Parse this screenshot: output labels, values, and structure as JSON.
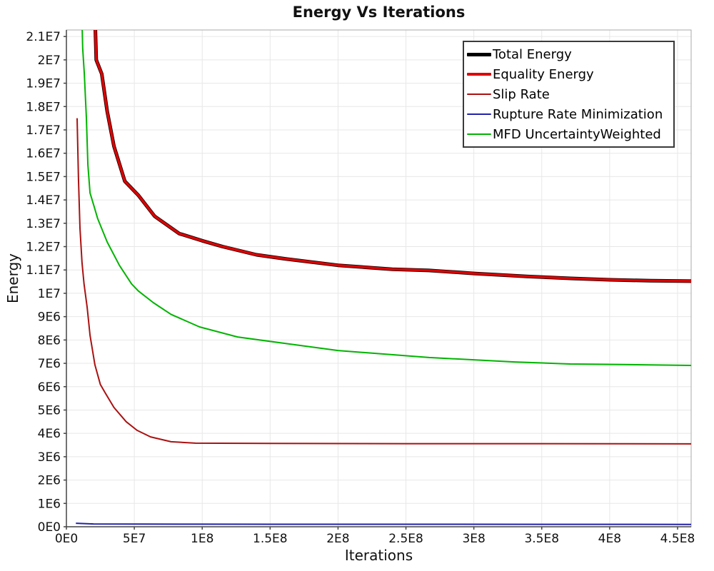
{
  "chart_data": {
    "type": "line",
    "title": "Energy Vs Iterations",
    "xlabel": "Iterations",
    "ylabel": "Energy",
    "xlim": [
      0,
      460000000.0
    ],
    "ylim": [
      0,
      21280000.0
    ],
    "grid": true,
    "legend_position": "top-right",
    "axis_color": "#444444",
    "border_color": "#aaaaaa",
    "grid_color": "#e7e7e7",
    "x_ticks": [
      {
        "v": 0,
        "label": "0E0"
      },
      {
        "v": 50000000.0,
        "label": "5E7"
      },
      {
        "v": 100000000.0,
        "label": "1E8"
      },
      {
        "v": 150000000.0,
        "label": "1.5E8"
      },
      {
        "v": 200000000.0,
        "label": "2E8"
      },
      {
        "v": 250000000.0,
        "label": "2.5E8"
      },
      {
        "v": 300000000.0,
        "label": "3E8"
      },
      {
        "v": 350000000.0,
        "label": "3.5E8"
      },
      {
        "v": 400000000.0,
        "label": "4E8"
      },
      {
        "v": 450000000.0,
        "label": "4.5E8"
      }
    ],
    "y_ticks": [
      {
        "v": 0,
        "label": "0E0"
      },
      {
        "v": 1000000.0,
        "label": "1E6"
      },
      {
        "v": 2000000.0,
        "label": "2E6"
      },
      {
        "v": 3000000.0,
        "label": "3E6"
      },
      {
        "v": 4000000.0,
        "label": "4E6"
      },
      {
        "v": 5000000.0,
        "label": "5E6"
      },
      {
        "v": 6000000.0,
        "label": "6E6"
      },
      {
        "v": 7000000.0,
        "label": "7E6"
      },
      {
        "v": 8000000.0,
        "label": "8E6"
      },
      {
        "v": 9000000.0,
        "label": "9E6"
      },
      {
        "v": 10000000.0,
        "label": "1E7"
      },
      {
        "v": 11000000.0,
        "label": "1.1E7"
      },
      {
        "v": 12000000.0,
        "label": "1.2E7"
      },
      {
        "v": 13000000.0,
        "label": "1.3E7"
      },
      {
        "v": 14000000.0,
        "label": "1.4E7"
      },
      {
        "v": 15000000.0,
        "label": "1.5E7"
      },
      {
        "v": 16000000.0,
        "label": "1.6E7"
      },
      {
        "v": 17000000.0,
        "label": "1.7E7"
      },
      {
        "v": 18000000.0,
        "label": "1.8E7"
      },
      {
        "v": 19000000.0,
        "label": "1.9E7"
      },
      {
        "v": 20000000.0,
        "label": "2E7"
      },
      {
        "v": 21000000.0,
        "label": "2.1E7"
      }
    ],
    "series": [
      {
        "name": "Total Energy",
        "color": "#000000",
        "width": 5,
        "points": [
          [
            19000000.0,
            26000000.0
          ],
          [
            22000000.0,
            20000000.0
          ],
          [
            26000000.0,
            19400000.0
          ],
          [
            30000000.0,
            17800000.0
          ],
          [
            35000000.0,
            16300000.0
          ],
          [
            43000000.0,
            14800000.0
          ],
          [
            53000000.0,
            14200000.0
          ],
          [
            65000000.0,
            13300000.0
          ],
          [
            83000000.0,
            12560000.0
          ],
          [
            100000000.0,
            12250000.0
          ],
          [
            115000000.0,
            12000000.0
          ],
          [
            140000000.0,
            11650000.0
          ],
          [
            162000000.0,
            11470000.0
          ],
          [
            200000000.0,
            11200000.0
          ],
          [
            240000000.0,
            11030000.0
          ],
          [
            267000000.0,
            10980000.0
          ],
          [
            300000000.0,
            10850000.0
          ],
          [
            340000000.0,
            10720000.0
          ],
          [
            371000000.0,
            10640000.0
          ],
          [
            400000000.0,
            10580000.0
          ],
          [
            430000000.0,
            10540000.0
          ],
          [
            460000000.0,
            10520000.0
          ]
        ]
      },
      {
        "name": "Equality Energy",
        "color": "#dd0000",
        "width": 3.5,
        "points": [
          [
            19000000.0,
            26000000.0
          ],
          [
            22000000.0,
            20000000.0
          ],
          [
            26000000.0,
            19400000.0
          ],
          [
            30000000.0,
            17800000.0
          ],
          [
            35000000.0,
            16300000.0
          ],
          [
            43000000.0,
            14800000.0
          ],
          [
            53000000.0,
            14200000.0
          ],
          [
            65000000.0,
            13300000.0
          ],
          [
            83000000.0,
            12560000.0
          ],
          [
            100000000.0,
            12250000.0
          ],
          [
            115000000.0,
            12000000.0
          ],
          [
            140000000.0,
            11650000.0
          ],
          [
            162000000.0,
            11470000.0
          ],
          [
            200000000.0,
            11200000.0
          ],
          [
            240000000.0,
            11030000.0
          ],
          [
            267000000.0,
            10980000.0
          ],
          [
            300000000.0,
            10850000.0
          ],
          [
            340000000.0,
            10720000.0
          ],
          [
            371000000.0,
            10640000.0
          ],
          [
            400000000.0,
            10580000.0
          ],
          [
            430000000.0,
            10540000.0
          ],
          [
            460000000.0,
            10520000.0
          ]
        ]
      },
      {
        "name": "Slip Rate",
        "color": "#aa1111",
        "width": 2,
        "points": [
          [
            7900000.0,
            17500000.0
          ],
          [
            8900000.0,
            14900000.0
          ],
          [
            10000000.0,
            12800000.0
          ],
          [
            11500000.0,
            11300000.0
          ],
          [
            13000000.0,
            10400000.0
          ],
          [
            15300000.0,
            9390000.0
          ],
          [
            17400000.0,
            8200000.0
          ],
          [
            21000000.0,
            6940000.0
          ],
          [
            25000000.0,
            6090000.0
          ],
          [
            29000000.0,
            5690000.0
          ],
          [
            35000000.0,
            5110000.0
          ],
          [
            44000000.0,
            4500000.0
          ],
          [
            52000000.0,
            4130000.0
          ],
          [
            62000000.0,
            3850000.0
          ],
          [
            77000000.0,
            3640000.0
          ],
          [
            95000000.0,
            3580000.0
          ],
          [
            150000000.0,
            3570000.0
          ],
          [
            250000000.0,
            3560000.0
          ],
          [
            350000000.0,
            3560000.0
          ],
          [
            460000000.0,
            3550000.0
          ]
        ]
      },
      {
        "name": "Rupture Rate Minimization",
        "color": "#2222aa",
        "width": 2,
        "points": [
          [
            7000000.0,
            150000.0
          ],
          [
            20000000.0,
            120000.0
          ],
          [
            100000000.0,
            110000.0
          ],
          [
            460000000.0,
            100000.0
          ]
        ]
      },
      {
        "name": "MFD UncertaintyWeighted",
        "color": "#00b400",
        "width": 2,
        "points": [
          [
            10500000.0,
            24000000.0
          ],
          [
            12000000.0,
            20500000.0
          ],
          [
            13200000.0,
            19400000.0
          ],
          [
            14700000.0,
            17500000.0
          ],
          [
            15800000.0,
            15500000.0
          ],
          [
            17400000.0,
            14300000.0
          ],
          [
            20500000.0,
            13700000.0
          ],
          [
            23000000.0,
            13200000.0
          ],
          [
            30000000.0,
            12200000.0
          ],
          [
            39000000.0,
            11200000.0
          ],
          [
            48000000.0,
            10400000.0
          ],
          [
            53000000.0,
            10100000.0
          ],
          [
            64000000.0,
            9600000.0
          ],
          [
            77000000.0,
            9100000.0
          ],
          [
            98000000.0,
            8560000.0
          ],
          [
            126000000.0,
            8130000.0
          ],
          [
            160000000.0,
            7860000.0
          ],
          [
            200000000.0,
            7550000.0
          ],
          [
            267000000.0,
            7250000.0
          ],
          [
            330000000.0,
            7060000.0
          ],
          [
            371000000.0,
            6970000.0
          ],
          [
            420000000.0,
            6940000.0
          ],
          [
            460000000.0,
            6910000.0
          ]
        ]
      }
    ]
  }
}
